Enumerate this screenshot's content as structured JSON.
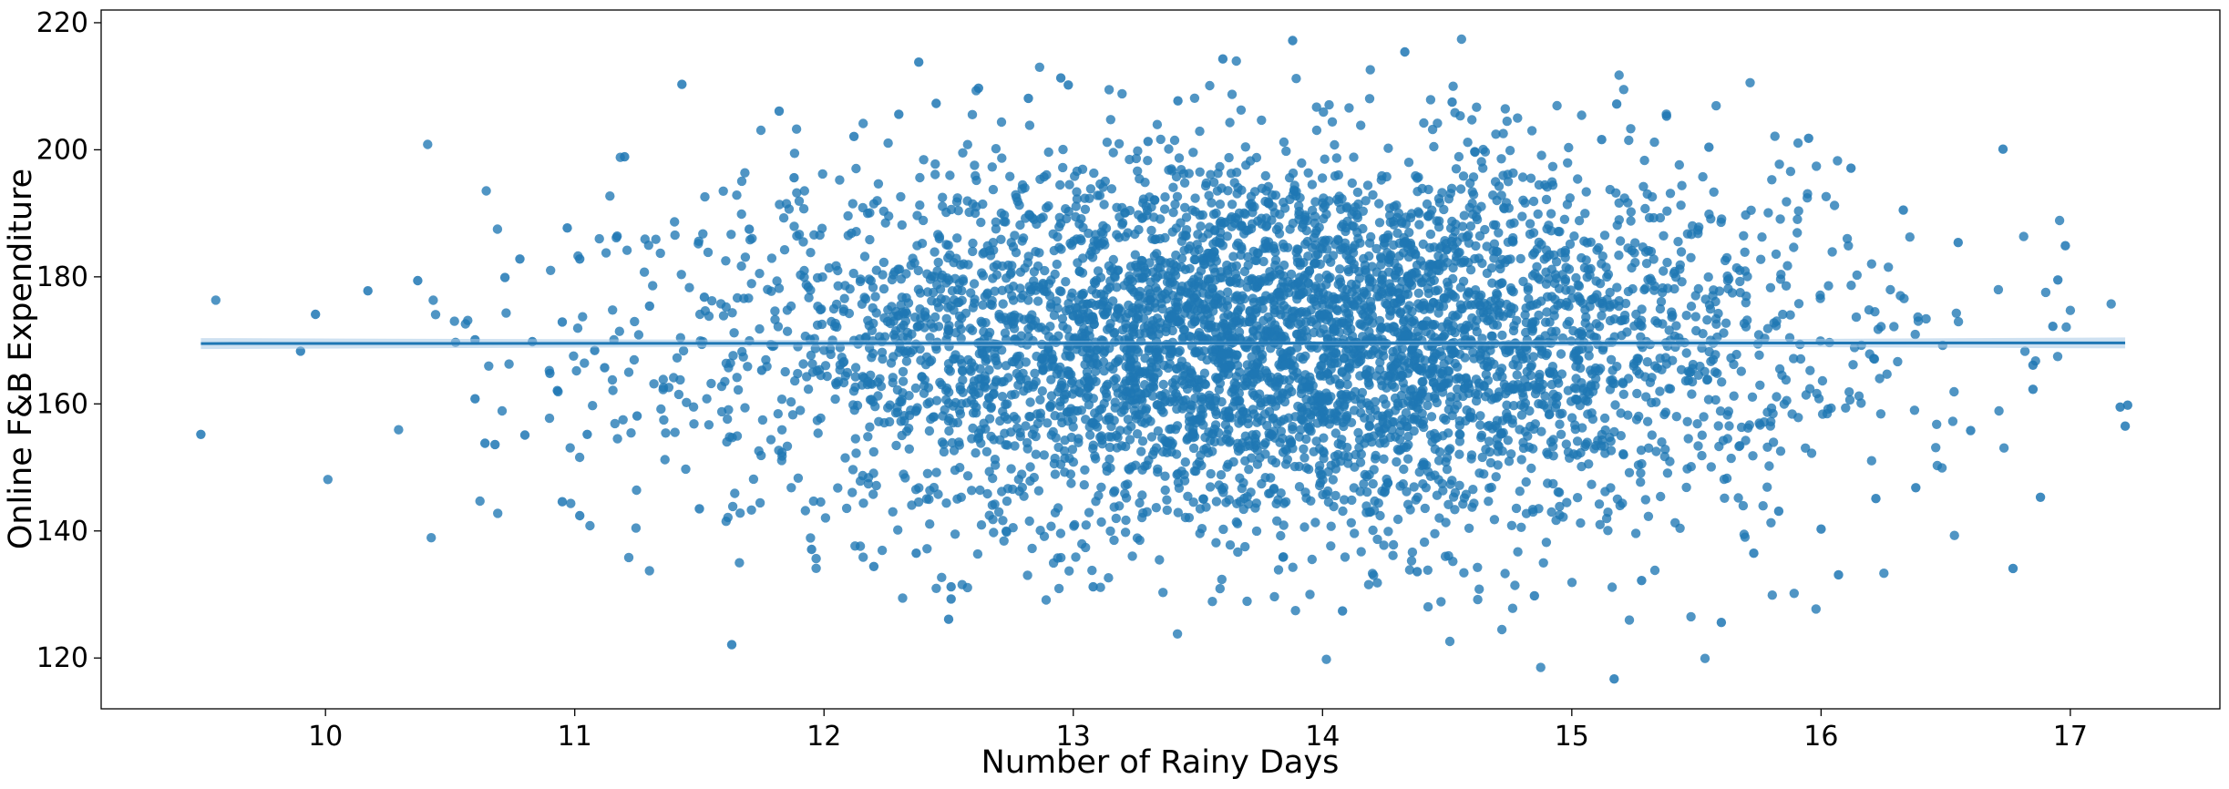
{
  "chart_data": {
    "type": "scatter",
    "title": "",
    "xlabel": "Number of Rainy Days",
    "ylabel": "Online F&B Expenditure",
    "xlim": [
      9.1,
      17.6
    ],
    "ylim": [
      112,
      222
    ],
    "xticks": [
      10,
      11,
      12,
      13,
      14,
      15,
      16,
      17
    ],
    "yticks": [
      120,
      140,
      160,
      180,
      200,
      220
    ],
    "grid": false,
    "legend": "none",
    "colors": {
      "points": "#1f77b4",
      "line": "#1f77b4",
      "ci_band": "#a6c8e6"
    },
    "regression": {
      "x": [
        9.5,
        17.22
      ],
      "y": [
        169.5,
        169.6
      ]
    },
    "cloud": {
      "estimated": true,
      "n": 5000,
      "x_mean": 13.8,
      "x_std": 1.05,
      "y_mean": 169.5,
      "y_std": 14.5,
      "x_range": [
        9.5,
        17.22
      ],
      "y_range": [
        116.5,
        217.5
      ]
    },
    "series": [
      {
        "points": [
          [
            9.5,
            155.2
          ],
          [
            9.9,
            168.3
          ],
          [
            9.96,
            174.1
          ],
          [
            10.17,
            177.8
          ],
          [
            10.37,
            179.4
          ],
          [
            10.6,
            170.1
          ],
          [
            10.6,
            160.8
          ],
          [
            10.64,
            153.8
          ],
          [
            10.68,
            153.6
          ],
          [
            10.72,
            179.9
          ],
          [
            10.78,
            182.8
          ],
          [
            10.8,
            155.1
          ],
          [
            10.83,
            169.8
          ],
          [
            10.9,
            164.8
          ],
          [
            10.93,
            162.1
          ],
          [
            10.95,
            172.9
          ],
          [
            10.95,
            144.6
          ],
          [
            10.97,
            187.7
          ],
          [
            11.02,
            142.4
          ],
          [
            11.02,
            182.8
          ],
          [
            11.05,
            155.2
          ],
          [
            11.08,
            168.4
          ],
          [
            11.12,
            165.7
          ],
          [
            11.17,
            186.4
          ],
          [
            11.2,
            198.9
          ],
          [
            11.25,
            158.1
          ],
          [
            11.3,
            175.4
          ],
          [
            11.43,
            210.3
          ],
          [
            11.5,
            143.5
          ],
          [
            11.52,
            176.8
          ],
          [
            11.63,
            122.1
          ],
          [
            11.7,
            187.5
          ],
          [
            11.75,
            165.3
          ],
          [
            11.82,
            206.1
          ],
          [
            11.88,
            195.6
          ],
          [
            11.95,
            137.1
          ],
          [
            12.12,
            202.1
          ],
          [
            12.2,
            134.4
          ],
          [
            12.3,
            205.6
          ],
          [
            12.37,
            136.5
          ],
          [
            12.38,
            213.8
          ],
          [
            12.45,
            207.3
          ],
          [
            12.5,
            126.1
          ],
          [
            12.51,
            129.3
          ],
          [
            12.51,
            131.2
          ],
          [
            12.62,
            209.7
          ],
          [
            12.82,
            208.1
          ],
          [
            12.95,
            211.3
          ],
          [
            12.98,
            210.2
          ],
          [
            13.08,
            131.2
          ],
          [
            13.3,
            201.3
          ],
          [
            13.42,
            207.7
          ],
          [
            13.6,
            214.3
          ],
          [
            13.88,
            217.2
          ],
          [
            14.08,
            127.4
          ],
          [
            14.33,
            215.4
          ],
          [
            14.38,
            133.6
          ],
          [
            14.52,
            207.5
          ],
          [
            14.85,
            129.8
          ],
          [
            15.12,
            201.6
          ],
          [
            15.17,
            116.7
          ],
          [
            15.18,
            207.2
          ],
          [
            15.28,
            132.2
          ],
          [
            15.38,
            205.3
          ],
          [
            15.55,
            200.4
          ],
          [
            15.6,
            125.6
          ],
          [
            15.73,
            136.5
          ],
          [
            15.83,
            143.1
          ],
          [
            15.95,
            201.8
          ],
          [
            16.0,
            140.3
          ],
          [
            16.07,
            133.1
          ],
          [
            16.12,
            197.1
          ],
          [
            16.22,
            145.1
          ],
          [
            16.33,
            190.5
          ],
          [
            16.38,
            146.8
          ],
          [
            16.55,
            185.4
          ],
          [
            16.6,
            155.8
          ],
          [
            16.73,
            200.1
          ],
          [
            16.77,
            134.1
          ],
          [
            16.85,
            166.1
          ],
          [
            16.88,
            145.3
          ],
          [
            16.95,
            179.5
          ],
          [
            16.98,
            184.9
          ],
          [
            17.2,
            159.5
          ],
          [
            17.22,
            156.5
          ],
          [
            17.23,
            159.8
          ],
          [
            16.85,
            162.3
          ],
          [
            16.93,
            172.2
          ]
        ]
      }
    ]
  }
}
